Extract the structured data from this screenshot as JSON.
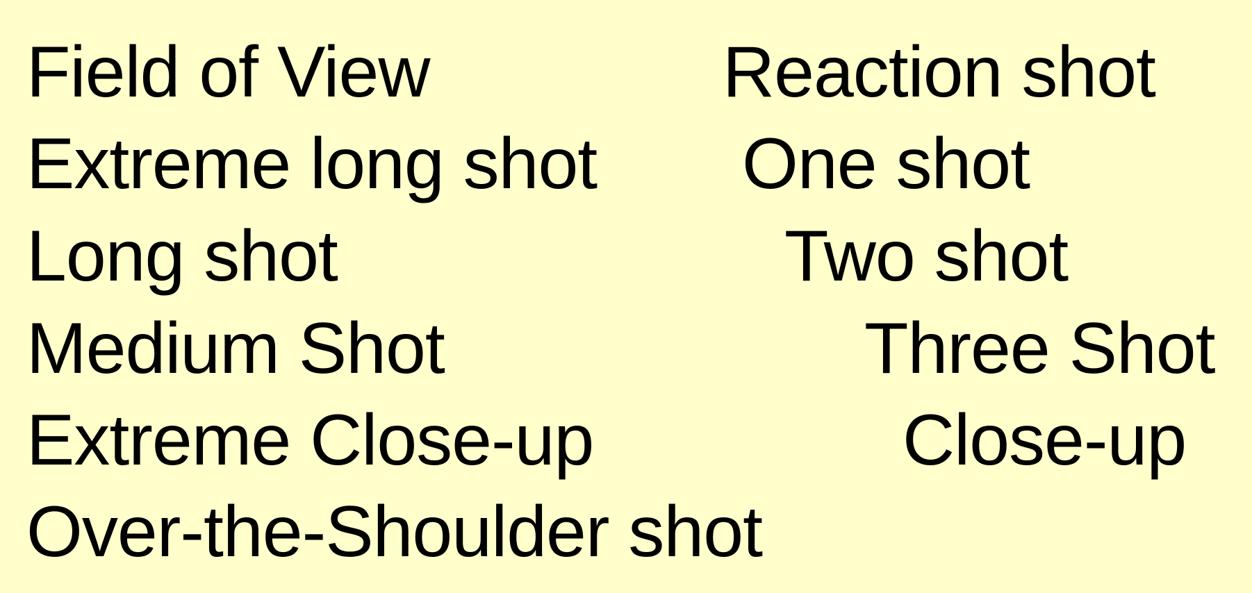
{
  "slide": {
    "background_color": "#ffffcc",
    "text_color": "#000000",
    "left_column": [
      "Field of View",
      "Extreme long shot",
      "Long shot",
      "Medium Shot",
      "Extreme Close-up",
      "Over-the-Shoulder shot"
    ],
    "right_column": [
      "Reaction shot",
      "One shot",
      "Two shot",
      "Three Shot",
      "Close-up"
    ]
  }
}
